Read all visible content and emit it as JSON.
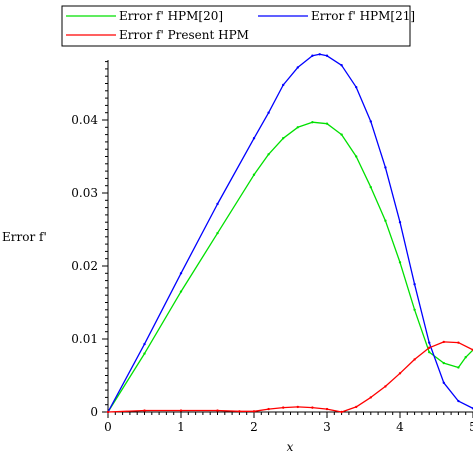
{
  "chart_data": {
    "type": "line",
    "title": "",
    "xlabel": "x",
    "ylabel": "Error f'",
    "xlim": [
      0,
      5
    ],
    "ylim": [
      0,
      0.05
    ],
    "x_ticks": [
      0,
      1,
      2,
      3,
      4,
      5
    ],
    "x_tick_labels": [
      "0",
      "1",
      "2",
      "3",
      "4",
      "5"
    ],
    "y_ticks": [
      0,
      0.01,
      0.02,
      0.03,
      0.04
    ],
    "y_tick_labels": [
      "0",
      "0.01",
      "0.02",
      "0.03",
      "0.04"
    ],
    "grid": false,
    "legend_position": "top",
    "series": [
      {
        "name": "Error f' HPM[20]",
        "color": "#00e000",
        "x": [
          0,
          0.5,
          1,
          1.5,
          2,
          2.2,
          2.4,
          2.6,
          2.8,
          3.0,
          3.2,
          3.4,
          3.6,
          3.8,
          4.0,
          4.2,
          4.4,
          4.6,
          4.8,
          4.9,
          5.0
        ],
        "y": [
          0,
          0.008,
          0.0165,
          0.0245,
          0.0325,
          0.0353,
          0.0375,
          0.039,
          0.0397,
          0.0395,
          0.038,
          0.035,
          0.0308,
          0.0262,
          0.0205,
          0.014,
          0.0082,
          0.0067,
          0.0061,
          0.0075,
          0.0085
        ]
      },
      {
        "name": "Error f' HPM[21]",
        "color": "#0000ff",
        "x": [
          0,
          0.5,
          1,
          1.5,
          2,
          2.2,
          2.4,
          2.6,
          2.8,
          2.9,
          3.0,
          3.2,
          3.4,
          3.6,
          3.8,
          4.0,
          4.2,
          4.4,
          4.6,
          4.8,
          5.0
        ],
        "y": [
          0,
          0.0093,
          0.019,
          0.0285,
          0.0375,
          0.041,
          0.0448,
          0.0472,
          0.0488,
          0.049,
          0.0488,
          0.0475,
          0.0445,
          0.0398,
          0.0335,
          0.026,
          0.0175,
          0.0095,
          0.004,
          0.0015,
          0.0005
        ]
      },
      {
        "name": "Error f' Present HPM",
        "color": "#ff0000",
        "x": [
          0,
          0.5,
          1,
          1.5,
          1.8,
          2.0,
          2.2,
          2.4,
          2.6,
          2.8,
          3.0,
          3.2,
          3.4,
          3.6,
          3.8,
          4.0,
          4.2,
          4.4,
          4.6,
          4.8,
          5.0
        ],
        "y": [
          0,
          0.0002,
          0.0002,
          0.0002,
          0.0001,
          0.0001,
          0.0004,
          0.0006,
          0.0007,
          0.0006,
          0.0004,
          0.0,
          0.0007,
          0.002,
          0.0035,
          0.0053,
          0.0072,
          0.0088,
          0.0096,
          0.0095,
          0.0085
        ]
      }
    ]
  }
}
